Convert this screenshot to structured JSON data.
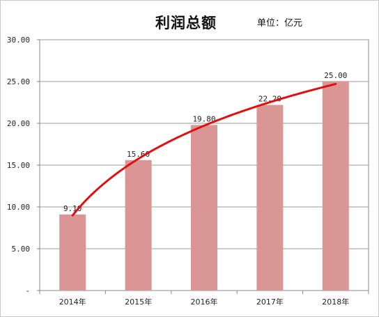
{
  "chart_data": {
    "type": "bar",
    "title": "利润总额",
    "unit_label": "单位：亿元",
    "xlabel": "",
    "ylabel": "",
    "categories": [
      "2014年",
      "2015年",
      "2016年",
      "2017年",
      "2018年"
    ],
    "values": [
      9.1,
      15.6,
      19.8,
      22.2,
      25.0
    ],
    "data_labels": [
      "9.10",
      "15.60",
      "19.80",
      "22.20",
      "25.00"
    ],
    "ylim": [
      0,
      30
    ],
    "y_ticks": [
      "-",
      "5.00",
      "10.00",
      "15.00",
      "20.00",
      "25.00",
      "30.00"
    ],
    "y_tick_values": [
      0,
      5,
      10,
      15,
      20,
      25,
      30
    ],
    "grid": true,
    "legend": "none",
    "trendline": {
      "type": "logarithmic",
      "color": "#dd1111"
    },
    "colors": {
      "bar": "#d99694",
      "grid": "#9a9a9a",
      "axis": "#888888"
    }
  }
}
